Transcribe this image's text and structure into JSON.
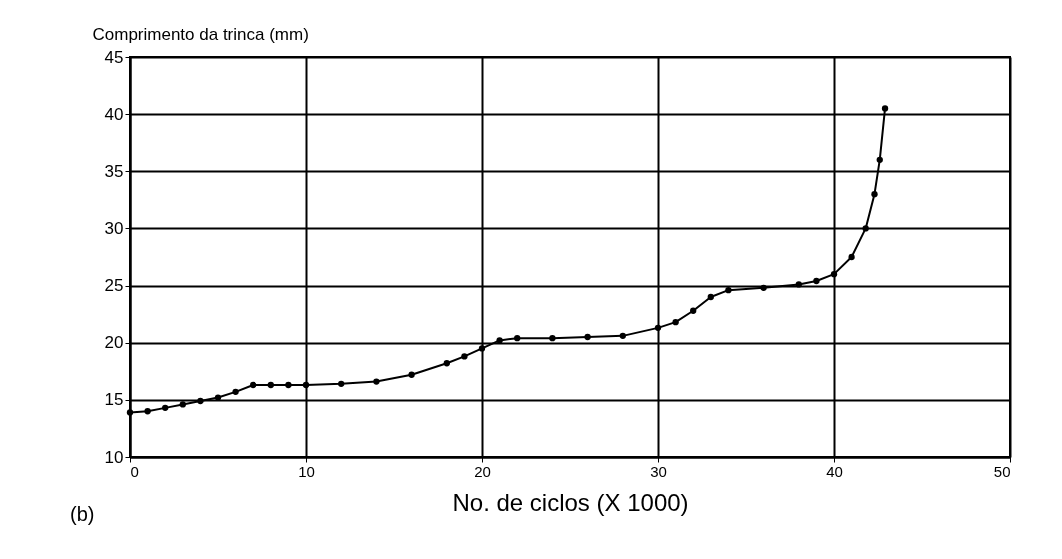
{
  "chart_data": {
    "type": "line",
    "xlabel": "No. de ciclos (X 1000)",
    "ylabel": "Comprimento da trinca (mm)",
    "annotations": [
      "(b)"
    ],
    "x": [
      0,
      1,
      2,
      3,
      4,
      5,
      6,
      7,
      8,
      9,
      10,
      12,
      14,
      16,
      18,
      19,
      20,
      21,
      22,
      24,
      26,
      28,
      30,
      31,
      32,
      33,
      34,
      36,
      38,
      39,
      40,
      41,
      41.8,
      42.3,
      42.6,
      42.9
    ],
    "series": [
      {
        "color": "#000000",
        "values": [
          13.9,
          14.0,
          14.3,
          14.6,
          14.9,
          15.2,
          15.7,
          16.3,
          16.3,
          16.3,
          16.3,
          16.4,
          16.6,
          17.2,
          18.2,
          18.8,
          19.5,
          20.2,
          20.4,
          20.4,
          20.5,
          20.6,
          21.3,
          21.8,
          22.8,
          24.0,
          24.6,
          24.8,
          25.1,
          25.4,
          26.0,
          27.5,
          30,
          33,
          36,
          40.5
        ]
      }
    ],
    "xlim": [
      0,
      50
    ],
    "xticks": [
      0,
      10,
      20,
      30,
      40,
      50
    ],
    "ylim": [
      10,
      45
    ],
    "yticks": [
      10,
      15,
      20,
      25,
      30,
      35,
      40,
      45
    ],
    "grid": true,
    "marker": "circle",
    "line_style": "solid"
  }
}
